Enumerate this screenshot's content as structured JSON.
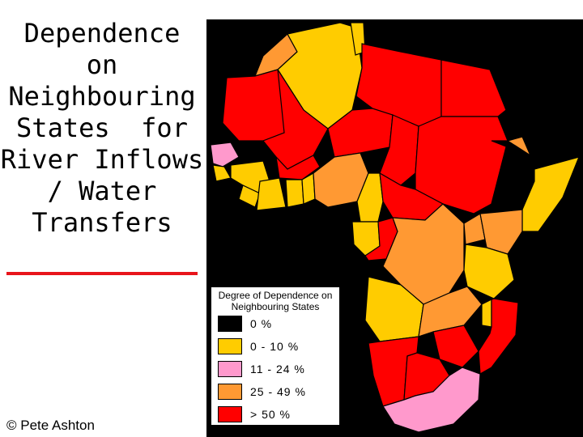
{
  "title_lines": [
    "Dependence",
    "on",
    "Neighbouring",
    "States  for",
    "River Inflows",
    "/ Water",
    "Transfers"
  ],
  "credit": "© Pete Ashton",
  "colors": {
    "none": "#000000",
    "low": "#ffcc00",
    "mid_low": "#ff99cc",
    "mid": "#ff9933",
    "high": "#ff0000",
    "accent_rule": "#e8141b"
  },
  "legend": {
    "title_line1": "Degree of Dependence on",
    "title_line2": "Neighbouring States",
    "items": [
      {
        "label": "0 %",
        "color": "#000000"
      },
      {
        "label": "0 - 10 %",
        "color": "#ffcc00"
      },
      {
        "label": "11 - 24 %",
        "color": "#ff99cc"
      },
      {
        "label": "25 - 49 %",
        "color": "#ff9933"
      },
      {
        "label": "> 50 %",
        "color": "#ff0000"
      }
    ]
  }
}
